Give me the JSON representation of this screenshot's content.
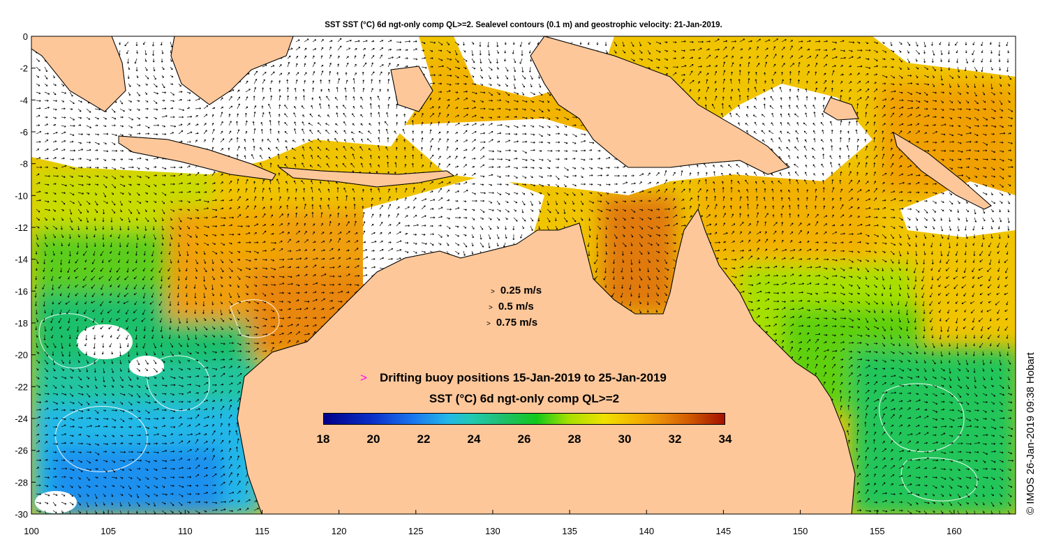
{
  "title": "SST SST (°C) 6d ngt-only comp QL>=2. Sealevel contours (0.1 m) and geostrophic velocity: 21-Jan-2019.",
  "map": {
    "lon_range": [
      100,
      164
    ],
    "lat_range": [
      -30,
      0
    ],
    "x_ticks": [
      "100",
      "105",
      "110",
      "115",
      "120",
      "125",
      "130",
      "135",
      "140",
      "145",
      "150",
      "155",
      "160"
    ],
    "y_ticks": [
      "0",
      "-2",
      "-4",
      "-6",
      "-8",
      "-10",
      "-12",
      "-14",
      "-16",
      "-18",
      "-20",
      "-22",
      "-24",
      "-26",
      "-28",
      "-30"
    ],
    "colors": {
      "land": "#fdc79a",
      "cloud": "#ffffff",
      "coast": "#000000",
      "buoy": "#ff00ff"
    }
  },
  "velocity_legend": [
    "0.25 m/s",
    "0.5 m/s",
    "0.75 m/s"
  ],
  "buoy_legend": {
    "marker": ">",
    "text": "Drifting buoy positions 15-Jan-2019 to 25-Jan-2019"
  },
  "colorbar": {
    "title": "SST (°C) 6d ngt-only comp QL>=2",
    "labels": [
      "18",
      "20",
      "22",
      "24",
      "26",
      "28",
      "30",
      "32",
      "34"
    ],
    "range": [
      18,
      34
    ]
  },
  "credit": "© IMOS 26-Jan-2019 09:38 Hobart"
}
